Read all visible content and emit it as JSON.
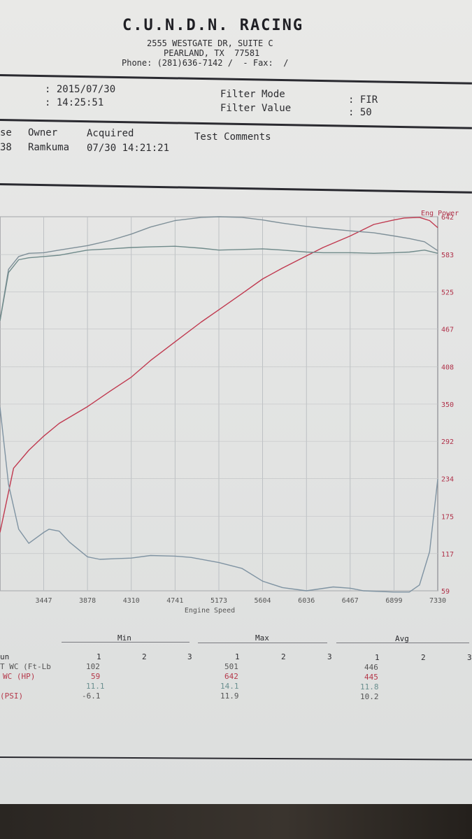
{
  "header": {
    "company": "C.U.N.D.N. RACING",
    "address1": "2555 WESTGATE DR, SUITE C",
    "address2": "PEARLAND, TX  77581",
    "phone": "Phone: (281)636-7142 /  - Fax:  /"
  },
  "info": {
    "date": ": 2015/07/30",
    "time": ": 14:25:51",
    "filter_mode_label": "Filter Mode",
    "filter_value_label": "Filter Value",
    "filter_mode": ": FIR",
    "filter_value": ": 50"
  },
  "run": {
    "col_se": "se",
    "col_owner": "Owner",
    "col_acquired": "Acquired",
    "col_comments": "Test Comments",
    "val_se": "38",
    "val_owner": "Ramkuma",
    "val_acquired": "07/30 14:21:21"
  },
  "chart_data": {
    "type": "line",
    "xlabel": "Engine Speed",
    "x_ticks": [
      "3447",
      "3878",
      "4310",
      "4741",
      "5173",
      "5604",
      "6036",
      "6467",
      "6899",
      "7330"
    ],
    "x_range": [
      3016,
      7330
    ],
    "right_axis_label": "Eng Power",
    "right_ticks": [
      "642",
      "583",
      "525",
      "467",
      "408",
      "350",
      "292",
      "234",
      "175",
      "117",
      "59"
    ],
    "right_range": [
      59,
      642
    ],
    "series": [
      {
        "name": "Eng Power",
        "color": "#c0394f",
        "x": [
          3016,
          3150,
          3300,
          3447,
          3600,
          3878,
          4100,
          4310,
          4500,
          4741,
          5000,
          5173,
          5400,
          5604,
          5800,
          6036,
          6200,
          6467,
          6700,
          6899,
          7000,
          7150,
          7250,
          7330
        ],
        "y": [
          150,
          250,
          278,
          300,
          320,
          346,
          370,
          392,
          418,
          447,
          478,
          497,
          522,
          545,
          562,
          581,
          594,
          612,
          630,
          637,
          640,
          641,
          636,
          625
        ]
      },
      {
        "x": [
          3016,
          3100,
          3200,
          3300,
          3447,
          3600,
          3878,
          4100,
          4310,
          4500,
          4741,
          5000,
          5173,
          5400,
          5604,
          5800,
          6036,
          6200,
          6467,
          6700,
          6899,
          7050,
          7200,
          7330
        ],
        "y": [
          480,
          560,
          580,
          585,
          586,
          590,
          597,
          605,
          615,
          626,
          636,
          641,
          642,
          641,
          637,
          632,
          627,
          624,
          620,
          617,
          612,
          608,
          603,
          589
        ]
      },
      {
        "x": [
          3016,
          3100,
          3200,
          3300,
          3447,
          3600,
          3878,
          4100,
          4310,
          4500,
          4741,
          5000,
          5173,
          5400,
          5604,
          5800,
          6036,
          6200,
          6467,
          6700,
          6899,
          7050,
          7200,
          7330
        ],
        "y": [
          480,
          555,
          575,
          578,
          580,
          582,
          590,
          592,
          594,
          595,
          596,
          593,
          590,
          591,
          592,
          590,
          587,
          586,
          586,
          585,
          586,
          587,
          590,
          585
        ]
      },
      {
        "x": [
          3016,
          3100,
          3200,
          3300,
          3447,
          3500,
          3600,
          3700,
          3878,
          4000,
          4150,
          4310,
          4500,
          4741,
          4900,
          5173,
          5400,
          5604,
          5800,
          6036,
          6300,
          6467,
          6600,
          6899,
          7050,
          7150,
          7250,
          7330
        ],
        "y": [
          345,
          225,
          155,
          133,
          150,
          155,
          152,
          135,
          112,
          108,
          109,
          110,
          114,
          113,
          111,
          103,
          94,
          74,
          64,
          59,
          65,
          63,
          59,
          57,
          57,
          68,
          120,
          233
        ]
      }
    ]
  },
  "summary": {
    "col_min": "Min",
    "col_max": "Max",
    "col_avg": "Avg",
    "run_nums": [
      "1",
      "2",
      "3"
    ],
    "rows": [
      {
        "label": "un",
        "min": "",
        "max": "",
        "avg": ""
      },
      {
        "label": "T WC (Ft-Lb",
        "min": "102",
        "max": "501",
        "avg": "446"
      },
      {
        "label": "WC (HP)",
        "min": "59",
        "max": "642",
        "avg": "445"
      },
      {
        "label": "",
        "min": "11.1",
        "max": "14.1",
        "avg": "11.8"
      },
      {
        "label": "(PSI)",
        "min": "-6.1",
        "max": "11.9",
        "avg": "10.2"
      }
    ]
  }
}
